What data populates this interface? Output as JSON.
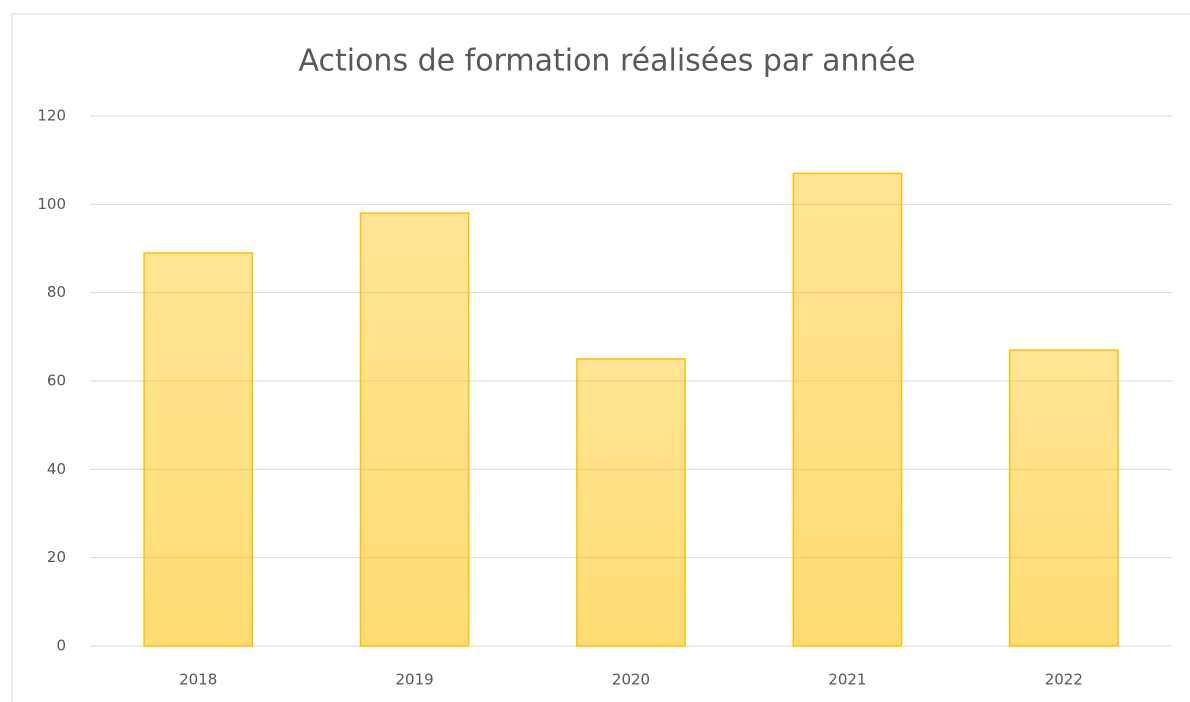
{
  "chart_data": {
    "type": "bar",
    "title": "Actions de formation réalisées par année",
    "categories": [
      "2018",
      "2019",
      "2020",
      "2021",
      "2022"
    ],
    "values": [
      89,
      98,
      65,
      107,
      67
    ],
    "color": "#ffc000",
    "ylim": [
      0,
      120
    ],
    "yticks": [
      0,
      20,
      40,
      60,
      80,
      100,
      120
    ],
    "grid": true
  }
}
